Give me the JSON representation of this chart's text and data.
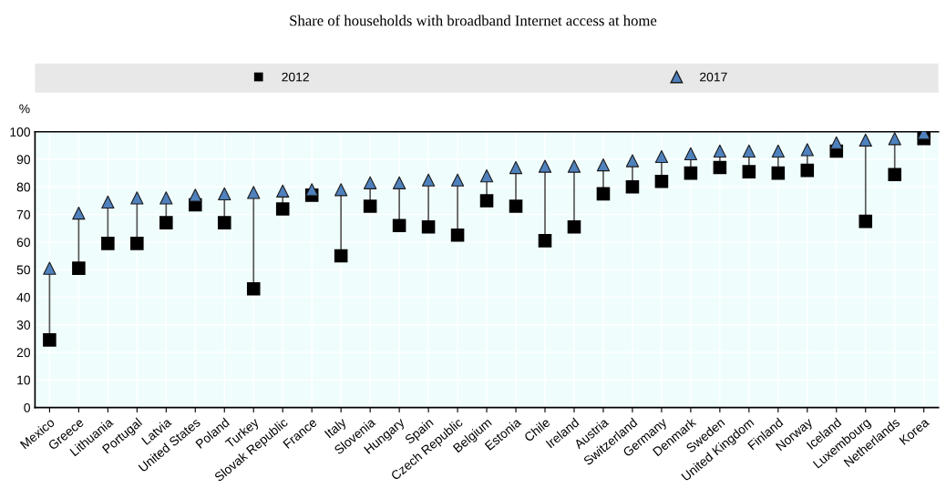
{
  "chart_data": {
    "type": "scatter",
    "title": "Share of households with broadband Internet access at home",
    "ylabel": "%",
    "categories": [
      "Mexico",
      "Greece",
      "Lithuania",
      "Portugal",
      "Latvia",
      "United States",
      "Poland",
      "Turkey",
      "Slovak Republic",
      "France",
      "Italy",
      "Slovenia",
      "Hungary",
      "Spain",
      "Czech Republic",
      "Belgium",
      "Estonia",
      "Chile",
      "Ireland",
      "Austria",
      "Switzerland",
      "Germany",
      "Denmark",
      "Sweden",
      "United Kingdom",
      "Finland",
      "Norway",
      "Iceland",
      "Luxembourg",
      "Netherlands",
      "Korea"
    ],
    "series": [
      {
        "name": "2012",
        "color": "#000000",
        "marker": "square",
        "values": [
          24.5,
          50.5,
          59.5,
          59.5,
          67,
          73.5,
          67,
          43,
          72,
          77,
          55,
          73,
          66,
          65.5,
          62.5,
          75,
          73,
          60.5,
          65.5,
          77.5,
          80,
          82,
          85,
          87,
          85.5,
          85,
          86,
          93,
          67.5,
          84.5,
          97.5
        ]
      },
      {
        "name": "2017",
        "color": "#4f81bd",
        "marker": "triangle",
        "values": [
          50.5,
          70.5,
          74.5,
          76,
          76,
          77,
          77.5,
          78,
          78.5,
          79,
          79,
          81.5,
          81.5,
          82.5,
          82.5,
          84,
          87,
          87.5,
          87.5,
          88,
          89.5,
          91,
          92,
          93,
          93,
          93,
          93.5,
          96,
          97,
          97.5,
          99.5
        ]
      }
    ],
    "ylim": [
      0,
      100
    ],
    "yticks": [
      0,
      10,
      20,
      30,
      40,
      50,
      60,
      70,
      80,
      90,
      100
    ],
    "grid": true,
    "legend": "top"
  }
}
